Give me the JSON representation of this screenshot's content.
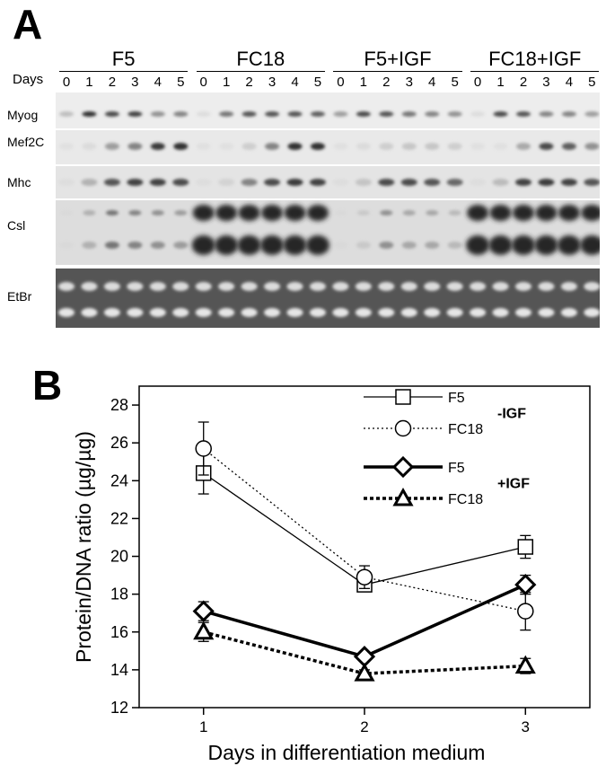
{
  "panel_a": {
    "letter": "A",
    "days_label": "Days",
    "groups": [
      {
        "name": "F5",
        "lanes": [
          "0",
          "1",
          "2",
          "3",
          "4",
          "5"
        ]
      },
      {
        "name": "FC18",
        "lanes": [
          "0",
          "1",
          "2",
          "3",
          "4",
          "5"
        ]
      },
      {
        "name": "F5+IGF",
        "lanes": [
          "0",
          "1",
          "2",
          "3",
          "4",
          "5"
        ]
      },
      {
        "name": "FC18+IGF",
        "lanes": [
          "0",
          "1",
          "2",
          "3",
          "4",
          "5"
        ]
      }
    ],
    "rows": [
      {
        "label": "Myog"
      },
      {
        "label": "Mef2C"
      },
      {
        "label": "Mhc"
      },
      {
        "label": "Csl"
      },
      {
        "label": "EtBr"
      }
    ]
  },
  "panel_b": {
    "letter": "B",
    "chart_data": {
      "type": "line",
      "xlabel": "Days in differentiation medium",
      "ylabel": "Protein/DNA ratio (µg/µg)",
      "x": [
        1,
        2,
        3
      ],
      "x_ticks": [
        "1",
        "2",
        "3"
      ],
      "y_ticks": [
        "12",
        "14",
        "16",
        "18",
        "20",
        "22",
        "24",
        "26",
        "28"
      ],
      "ylim": [
        12,
        29
      ],
      "xlim": [
        0.6,
        3.4
      ],
      "legend_placement": "top-right",
      "legend_groups": [
        {
          "label": "-IGF",
          "entries": [
            0,
            1
          ]
        },
        {
          "label": "+IGF",
          "entries": [
            2,
            3
          ]
        }
      ],
      "series": [
        {
          "name": "F5",
          "values": [
            24.4,
            18.5,
            20.5
          ],
          "errors": [
            1.1,
            0.3,
            0.6
          ],
          "marker": "square",
          "line": "solid-thin"
        },
        {
          "name": "FC18",
          "values": [
            25.7,
            18.9,
            17.1
          ],
          "errors": [
            1.4,
            0.6,
            1.0
          ],
          "marker": "circle",
          "line": "dotted-thin"
        },
        {
          "name": "F5",
          "values": [
            17.1,
            14.7,
            18.5
          ],
          "errors": [
            0.5,
            0.2,
            0.5
          ],
          "marker": "diamond",
          "line": "solid-thick"
        },
        {
          "name": "FC18",
          "values": [
            16.0,
            13.8,
            14.2
          ],
          "errors": [
            0.5,
            0.2,
            0.4
          ],
          "marker": "triangle",
          "line": "dotted-thick"
        }
      ]
    }
  }
}
